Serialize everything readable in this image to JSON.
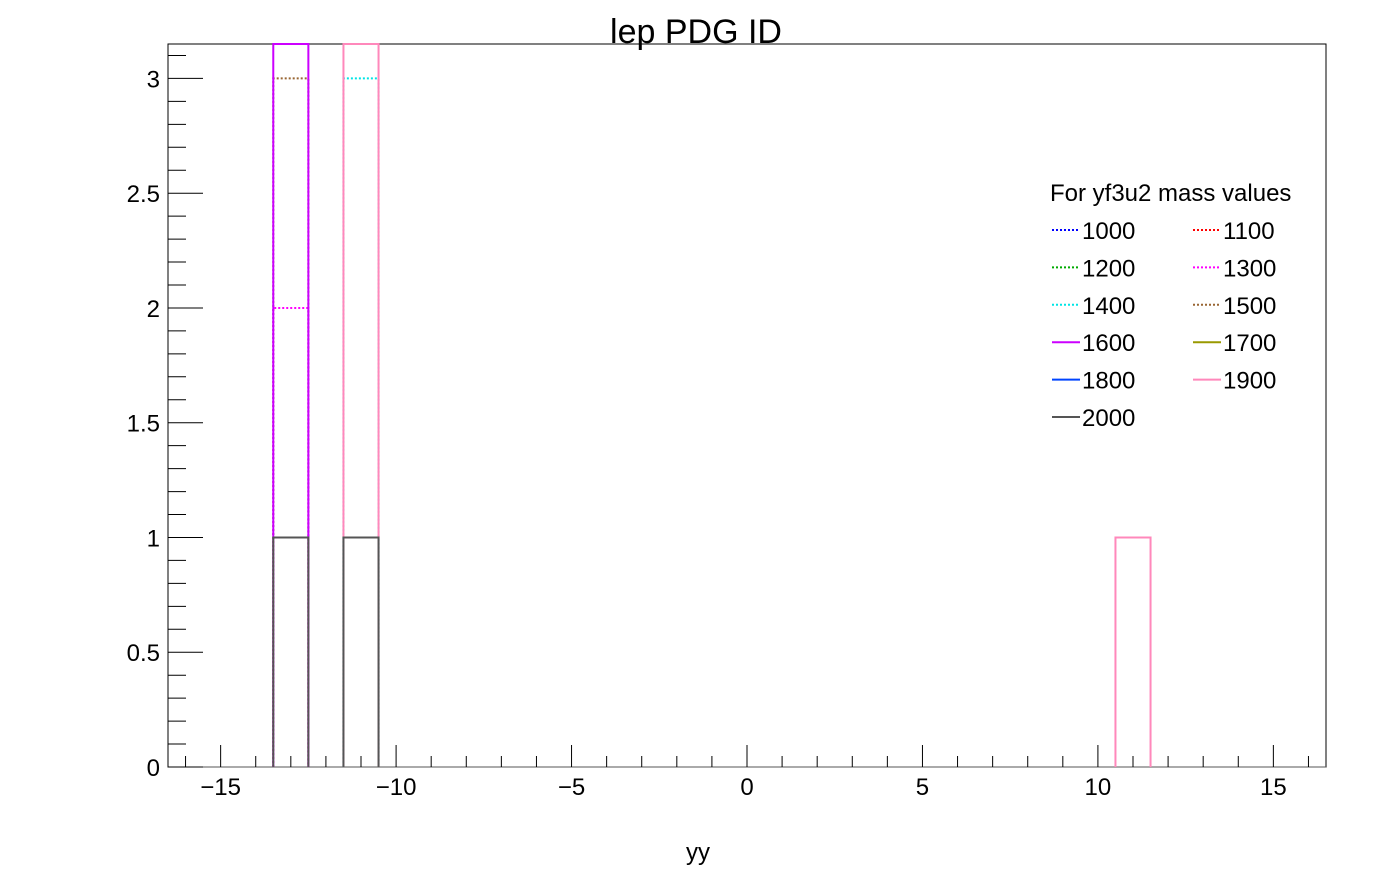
{
  "chart_data": {
    "type": "histogram",
    "title": "lep PDG ID",
    "xlabel": "yy",
    "ylabel": "",
    "xlim": [
      -16.5,
      16.5
    ],
    "ylim": [
      0,
      3.15
    ],
    "grid": false,
    "x_ticks": [
      -15,
      -10,
      -5,
      0,
      5,
      10,
      15
    ],
    "x_tick_labels": [
      "−15",
      "−10",
      "−5",
      "0",
      "5",
      "10",
      "15"
    ],
    "y_ticks": [
      0,
      0.5,
      1,
      1.5,
      2,
      2.5,
      3
    ],
    "y_tick_labels": [
      "0",
      "0.5",
      "1",
      "1.5",
      "2",
      "2.5",
      "3"
    ],
    "legend": {
      "title": "For yf3u2 mass values",
      "placement": "top-right",
      "columns": 2
    },
    "series": [
      {
        "name": "1000",
        "color": "#0000ff",
        "style": "dotted",
        "bins": []
      },
      {
        "name": "1100",
        "color": "#ff0000",
        "style": "dotted",
        "bins": []
      },
      {
        "name": "1200",
        "color": "#00aa00",
        "style": "dotted",
        "bins": []
      },
      {
        "name": "1300",
        "color": "#ff00ff",
        "style": "dotted",
        "bins": [
          {
            "x0": -13.5,
            "x1": -12.5,
            "y": 2
          }
        ]
      },
      {
        "name": "1400",
        "color": "#00e5e5",
        "style": "dotted",
        "bins": [
          {
            "x0": -11.5,
            "x1": -10.5,
            "y": 3
          }
        ]
      },
      {
        "name": "1500",
        "color": "#996633",
        "style": "dotted",
        "bins": [
          {
            "x0": -13.5,
            "x1": -12.5,
            "y": 3
          }
        ]
      },
      {
        "name": "1600",
        "color": "#cc00ff",
        "style": "solid",
        "bins": [
          {
            "x0": -13.5,
            "x1": -12.5,
            "y": 3.15
          }
        ]
      },
      {
        "name": "1700",
        "color": "#999900",
        "style": "solid",
        "bins": []
      },
      {
        "name": "1800",
        "color": "#0044ff",
        "style": "solid",
        "bins": []
      },
      {
        "name": "1900",
        "color": "#ff88bb",
        "style": "solid",
        "bins": [
          {
            "x0": -11.5,
            "x1": -10.5,
            "y": 3.15
          },
          {
            "x0": 10.5,
            "x1": 11.5,
            "y": 1
          }
        ]
      },
      {
        "name": "2000",
        "color": "#555555",
        "style": "solid",
        "bins": [
          {
            "x0": -13.5,
            "x1": -12.5,
            "y": 1
          },
          {
            "x0": -11.5,
            "x1": -10.5,
            "y": 1
          }
        ]
      }
    ]
  }
}
